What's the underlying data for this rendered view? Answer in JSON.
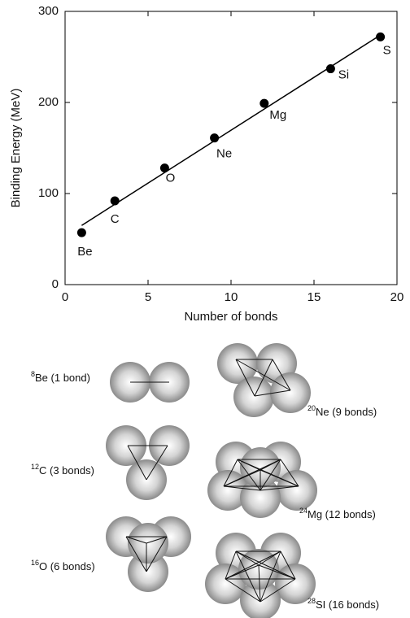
{
  "chart_data": {
    "type": "scatter",
    "x_label": "Number of bonds",
    "y_label": "Binding Energy (MeV)",
    "xlim": [
      0,
      20
    ],
    "xticks": [
      0,
      5,
      10,
      15,
      20
    ],
    "ylim": [
      0,
      300
    ],
    "yticks": [
      0,
      100,
      200,
      300
    ],
    "series": [
      {
        "name": null,
        "color": "#000000",
        "mode": "markers",
        "x": [
          1,
          3,
          6,
          9,
          12,
          16,
          19
        ],
        "values": [
          57,
          92,
          128,
          161,
          199,
          237,
          272
        ],
        "point_labels": [
          "Be",
          "C",
          "O",
          "Ne",
          "Mg",
          "Si",
          "S"
        ]
      },
      {
        "name": null,
        "color": "#000000",
        "mode": "line",
        "x": [
          1,
          19
        ],
        "values": [
          65,
          274
        ]
      }
    ]
  },
  "structures": [
    {
      "mass": "8",
      "text": "Be (1 bond)"
    },
    {
      "mass": "20",
      "text": "Ne (9 bonds)"
    },
    {
      "mass": "12",
      "text": "C (3 bonds)"
    },
    {
      "mass": "24",
      "text": "Mg (12 bonds)"
    },
    {
      "mass": "16",
      "text": "O (6 bonds)"
    },
    {
      "mass": "28",
      "text": "SI (16 bonds)"
    }
  ]
}
